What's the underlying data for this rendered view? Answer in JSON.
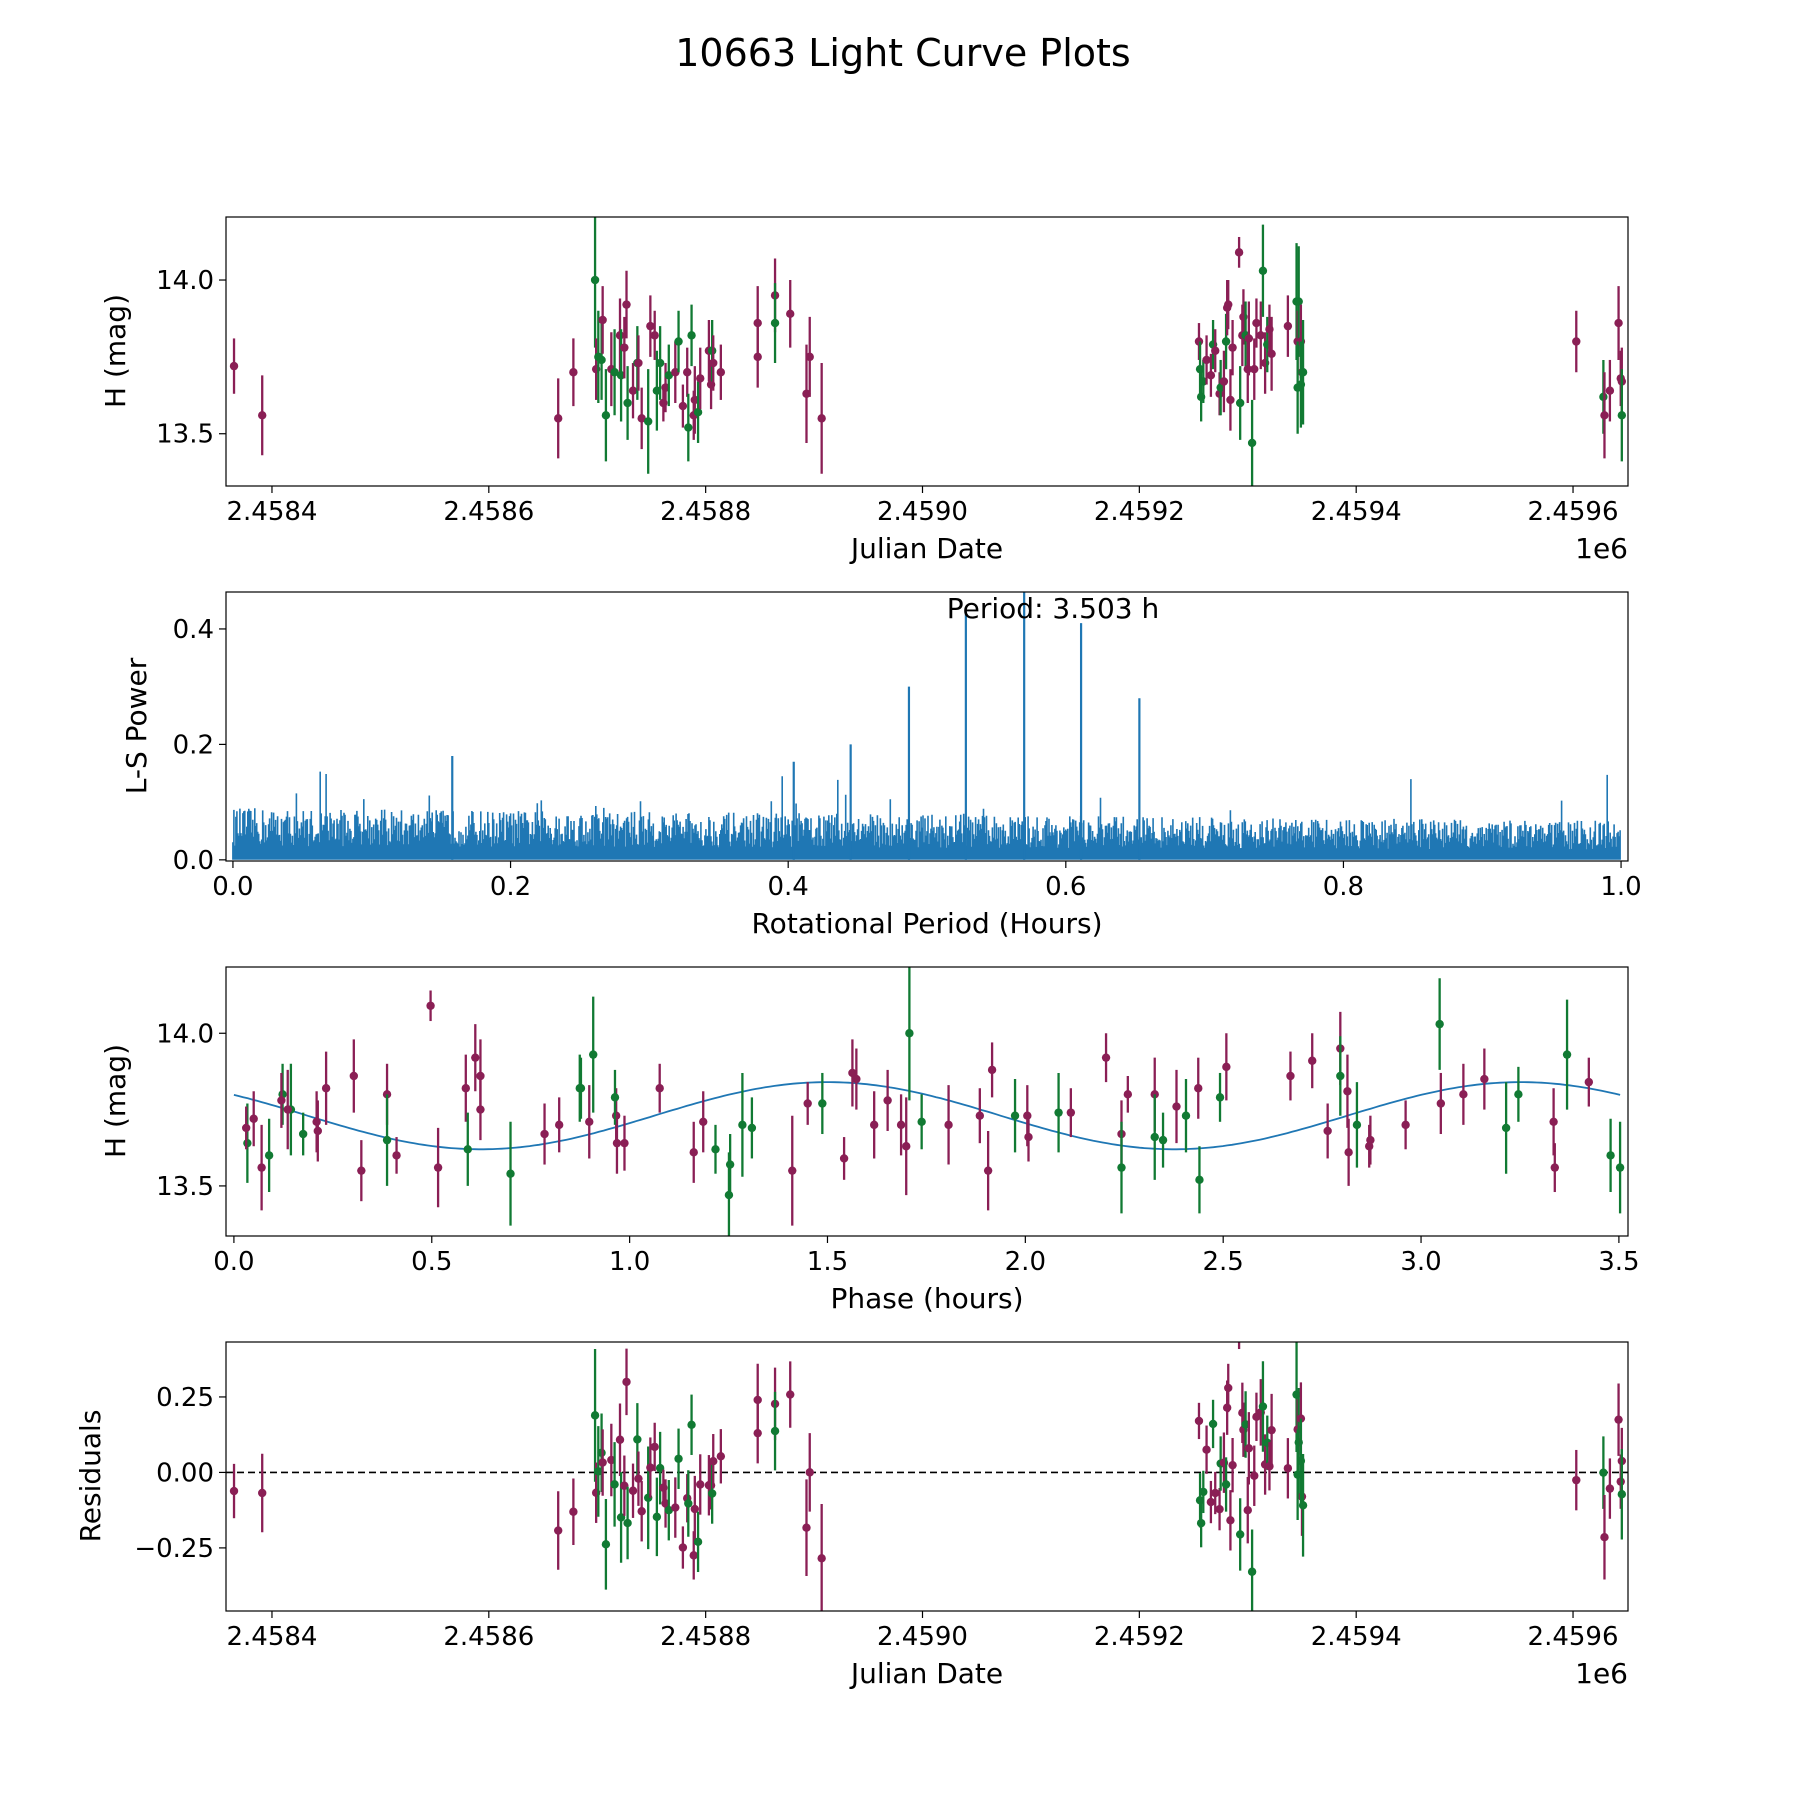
{
  "title": "10663 Light Curve Plots",
  "colors": {
    "band_a": "#8a1f55",
    "band_b": "#117a33",
    "periodogram": "#1f77b4",
    "model": "#1f77b4"
  },
  "chart_data": [
    {
      "type": "scatter",
      "name": "light-curve",
      "xlabel": "Julian Date",
      "ylabel": "H (mag)",
      "x_offset_label": "1e6",
      "xlim": [
        2458357.6,
        2459650.7
      ],
      "ylim": [
        13.33,
        14.205
      ],
      "xticks": [
        2458400,
        2458600,
        2458800,
        2459000,
        2459200,
        2459400,
        2459600
      ],
      "xtick_labels": [
        "2.4584",
        "2.4586",
        "2.4588",
        "2.4590",
        "2.4592",
        "2.4594",
        "2.4596"
      ],
      "yticks": [
        13.5,
        14.0
      ],
      "ytick_labels": [
        "13.5",
        "14.0"
      ],
      "columns": [
        "jd",
        "mag",
        "err",
        "band"
      ],
      "observations": [
        [
          2458365,
          13.72,
          0.09,
          "a"
        ],
        [
          2458391,
          13.56,
          0.13,
          "a"
        ],
        [
          2458664,
          13.55,
          0.13,
          "a"
        ],
        [
          2458678,
          13.7,
          0.11,
          "a"
        ],
        [
          2458698,
          14.0,
          0.22,
          "b"
        ],
        [
          2458699,
          13.71,
          0.1,
          "a"
        ],
        [
          2458701,
          13.75,
          0.15,
          "b"
        ],
        [
          2458704,
          13.74,
          0.13,
          "b"
        ],
        [
          2458705,
          13.87,
          0.11,
          "a"
        ],
        [
          2458708,
          13.56,
          0.15,
          "b"
        ],
        [
          2458713,
          13.71,
          0.12,
          "a"
        ],
        [
          2458716,
          13.7,
          0.14,
          "b"
        ],
        [
          2458721,
          13.82,
          0.12,
          "a"
        ],
        [
          2458722,
          13.69,
          0.15,
          "b"
        ],
        [
          2458725,
          13.78,
          0.1,
          "a"
        ],
        [
          2458727,
          13.92,
          0.11,
          "a"
        ],
        [
          2458728,
          13.6,
          0.12,
          "b"
        ],
        [
          2458733,
          13.64,
          0.09,
          "a"
        ],
        [
          2458737,
          13.73,
          0.12,
          "b"
        ],
        [
          2458738,
          13.73,
          0.09,
          "a"
        ],
        [
          2458741,
          13.55,
          0.1,
          "a"
        ],
        [
          2458747,
          13.54,
          0.17,
          "b"
        ],
        [
          2458749,
          13.85,
          0.1,
          "a"
        ],
        [
          2458753,
          13.82,
          0.08,
          "a"
        ],
        [
          2458755,
          13.64,
          0.13,
          "b"
        ],
        [
          2458758,
          13.73,
          0.12,
          "b"
        ],
        [
          2458761,
          13.6,
          0.06,
          "a"
        ],
        [
          2458763,
          13.65,
          0.08,
          "a"
        ],
        [
          2458766,
          13.69,
          0.1,
          "b"
        ],
        [
          2458772,
          13.7,
          0.1,
          "a"
        ],
        [
          2458775,
          13.8,
          0.1,
          "b"
        ],
        [
          2458779,
          13.59,
          0.07,
          "a"
        ],
        [
          2458783,
          13.7,
          0.08,
          "a"
        ],
        [
          2458784,
          13.52,
          0.11,
          "b"
        ],
        [
          2458787,
          13.82,
          0.1,
          "b"
        ],
        [
          2458789,
          13.56,
          0.08,
          "a"
        ],
        [
          2458790,
          13.61,
          0.11,
          "a"
        ],
        [
          2458793,
          13.57,
          0.1,
          "b"
        ],
        [
          2458795,
          13.68,
          0.1,
          "a"
        ],
        [
          2458803,
          13.77,
          0.1,
          "a"
        ],
        [
          2458805,
          13.66,
          0.08,
          "a"
        ],
        [
          2458806,
          13.77,
          0.1,
          "b"
        ],
        [
          2458807,
          13.73,
          0.09,
          "a"
        ],
        [
          2458814,
          13.7,
          0.09,
          "a"
        ],
        [
          2458848,
          13.86,
          0.12,
          "a"
        ],
        [
          2458848,
          13.75,
          0.1,
          "a"
        ],
        [
          2458864,
          13.95,
          0.12,
          "a"
        ],
        [
          2458864,
          13.86,
          0.13,
          "b"
        ],
        [
          2458878,
          13.89,
          0.11,
          "a"
        ],
        [
          2458893,
          13.63,
          0.16,
          "a"
        ],
        [
          2458896,
          13.75,
          0.13,
          "a"
        ],
        [
          2458907,
          13.55,
          0.18,
          "a"
        ],
        [
          2459255,
          13.8,
          0.06,
          "a"
        ],
        [
          2459256,
          13.71,
          0.09,
          "b"
        ],
        [
          2459257,
          13.62,
          0.08,
          "b"
        ],
        [
          2459259,
          13.67,
          0.07,
          "b"
        ],
        [
          2459262,
          13.74,
          0.08,
          "a"
        ],
        [
          2459266,
          13.69,
          0.07,
          "a"
        ],
        [
          2459268,
          13.79,
          0.08,
          "b"
        ],
        [
          2459270,
          13.77,
          0.07,
          "a"
        ],
        [
          2459274,
          13.63,
          0.07,
          "a"
        ],
        [
          2459275,
          13.65,
          0.09,
          "b"
        ],
        [
          2459278,
          13.67,
          0.1,
          "a"
        ],
        [
          2459280,
          13.8,
          0.09,
          "b"
        ],
        [
          2459281,
          13.91,
          0.09,
          "a"
        ],
        [
          2459282,
          13.92,
          0.08,
          "a"
        ],
        [
          2459284,
          13.61,
          0.1,
          "a"
        ],
        [
          2459286,
          13.78,
          0.09,
          "a"
        ],
        [
          2459292,
          14.09,
          0.05,
          "a"
        ],
        [
          2459293,
          13.6,
          0.12,
          "b"
        ],
        [
          2459295,
          13.82,
          0.1,
          "a"
        ],
        [
          2459296,
          13.88,
          0.09,
          "a"
        ],
        [
          2459298,
          13.82,
          0.11,
          "b"
        ],
        [
          2459300,
          13.71,
          0.11,
          "a"
        ],
        [
          2459301,
          13.81,
          0.12,
          "a"
        ],
        [
          2459304,
          13.47,
          0.14,
          "b"
        ],
        [
          2459306,
          13.71,
          0.1,
          "a"
        ],
        [
          2459308,
          13.86,
          0.08,
          "a"
        ],
        [
          2459312,
          13.82,
          0.11,
          "a"
        ],
        [
          2459314,
          14.03,
          0.15,
          "b"
        ],
        [
          2459316,
          13.73,
          0.1,
          "a"
        ],
        [
          2459318,
          13.79,
          0.09,
          "b"
        ],
        [
          2459320,
          13.84,
          0.08,
          "a"
        ],
        [
          2459322,
          13.76,
          0.12,
          "a"
        ],
        [
          2459337,
          13.85,
          0.1,
          "a"
        ],
        [
          2459345,
          13.93,
          0.19,
          "b"
        ],
        [
          2459346,
          13.8,
          0.1,
          "a"
        ],
        [
          2459347,
          13.93,
          0.18,
          "b"
        ],
        [
          2459349,
          13.8,
          0.12,
          "a"
        ],
        [
          2459350,
          13.7,
          0.13,
          "a"
        ],
        [
          2459349,
          13.66,
          0.14,
          "b"
        ],
        [
          2459346,
          13.65,
          0.15,
          "b"
        ],
        [
          2459351,
          13.7,
          0.17,
          "b"
        ],
        [
          2459603,
          13.8,
          0.1,
          "a"
        ],
        [
          2459628,
          13.62,
          0.12,
          "b"
        ],
        [
          2459629,
          13.56,
          0.14,
          "a"
        ],
        [
          2459634,
          13.64,
          0.1,
          "a"
        ],
        [
          2459642,
          13.86,
          0.12,
          "a"
        ],
        [
          2459644,
          13.68,
          0.09,
          "a"
        ],
        [
          2459645,
          13.67,
          0.11,
          "a"
        ],
        [
          2459645,
          13.56,
          0.15,
          "b"
        ]
      ]
    },
    {
      "type": "line",
      "name": "lomb-scargle-periodogram",
      "xlabel": "Rotational Period (Hours)",
      "ylabel": "L-S Power",
      "annotation": "Period: 3.503 h",
      "xlim": [
        -0.005,
        1.005
      ],
      "ylim": [
        -0.002,
        0.464
      ],
      "xticks": [
        0.0,
        0.2,
        0.4,
        0.6,
        0.8,
        1.0
      ],
      "xtick_labels": [
        "0.0",
        "0.2",
        "0.4",
        "0.6",
        "0.8",
        "1.0"
      ],
      "yticks": [
        0.0,
        0.2,
        0.4
      ],
      "ytick_labels": [
        "0.0",
        "0.2",
        "0.4"
      ],
      "noise_floor_power": [
        0.06,
        0.045
      ],
      "noise_max_power": 0.17,
      "peaks": [
        {
          "period": 0.158,
          "power": 0.18
        },
        {
          "period": 0.404,
          "power": 0.17
        },
        {
          "period": 0.445,
          "power": 0.2
        },
        {
          "period": 0.487,
          "power": 0.3
        },
        {
          "period": 0.528,
          "power": 0.43
        },
        {
          "period": 0.57,
          "power": 0.465
        },
        {
          "period": 0.611,
          "power": 0.41
        },
        {
          "period": 0.653,
          "power": 0.28
        }
      ]
    },
    {
      "type": "scatter",
      "name": "phased-light-curve",
      "xlabel": "Phase (hours)",
      "ylabel": "H (mag)",
      "xlim": [
        -0.02,
        3.523
      ],
      "ylim": [
        13.336,
        14.217
      ],
      "xticks": [
        0.0,
        0.5,
        1.0,
        1.5,
        2.0,
        2.5,
        3.0,
        3.5
      ],
      "xtick_labels": [
        "0.0",
        "0.5",
        "1.0",
        "1.5",
        "2.0",
        "2.5",
        "3.0",
        "3.5"
      ],
      "yticks": [
        13.5,
        14.0
      ],
      "ytick_labels": [
        "13.5",
        "14.0"
      ],
      "period_hours": 3.503,
      "model": {
        "mean": 13.73,
        "amplitude": 0.11,
        "peak_phase": 1.5,
        "harmonic": 2
      }
    },
    {
      "type": "scatter",
      "name": "residuals",
      "xlabel": "Julian Date",
      "ylabel": "Residuals",
      "x_offset_label": "1e6",
      "xlim": [
        2458357.6,
        2459650.7
      ],
      "ylim": [
        -0.459,
        0.432
      ],
      "xticks": [
        2458400,
        2458600,
        2458800,
        2459000,
        2459200,
        2459400,
        2459600
      ],
      "xtick_labels": [
        "2.4584",
        "2.4586",
        "2.4588",
        "2.4590",
        "2.4592",
        "2.4594",
        "2.4596"
      ],
      "yticks": [
        -0.25,
        0.0,
        0.25
      ],
      "ytick_labels": [
        "−0.25",
        "0.00",
        "0.25"
      ],
      "zero_line": 0
    }
  ]
}
